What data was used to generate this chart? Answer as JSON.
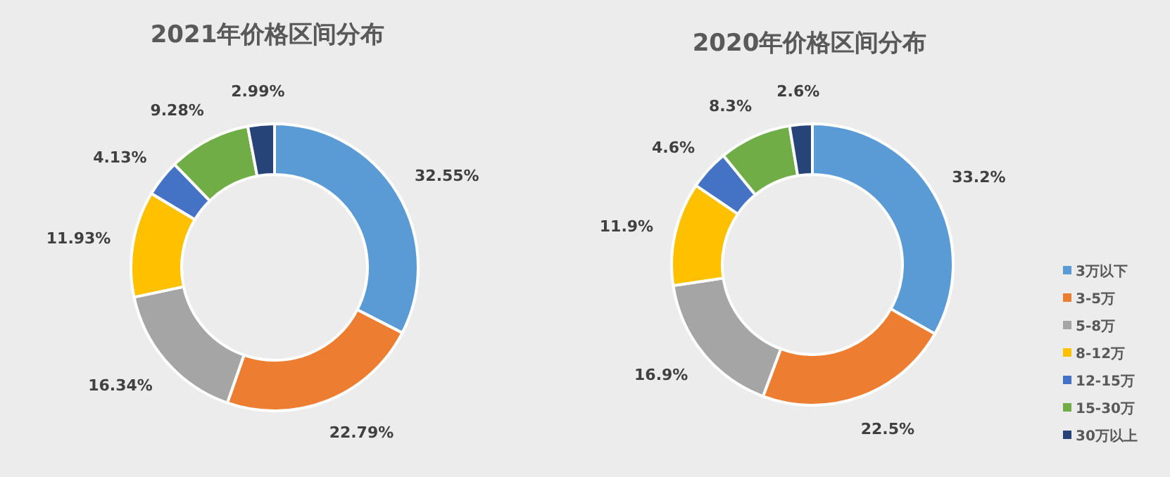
{
  "chart_data": [
    {
      "type": "donut",
      "title": "2021年价格区间分布",
      "values": [
        32.55,
        22.79,
        16.34,
        11.93,
        4.13,
        9.28,
        2.99
      ],
      "value_labels": [
        "32.55%",
        "22.79%",
        "16.34%",
        "11.93%",
        "4.13%",
        "9.28%",
        "2.99%"
      ],
      "colors": [
        "#5b9bd5",
        "#ed7d31",
        "#a5a5a5",
        "#ffc000",
        "#4472c4",
        "#70ad47",
        "#264478"
      ],
      "legend": false
    },
    {
      "type": "donut",
      "title": "2020年价格区间分布",
      "categories": [
        "3万以下",
        "3-5万",
        "5-8万",
        "8-12万",
        "12-15万",
        "15-30万",
        "30万以上"
      ],
      "values": [
        33.2,
        22.5,
        16.9,
        11.9,
        4.6,
        8.3,
        2.6
      ],
      "value_labels": [
        "33.2%",
        "22.5%",
        "16.9%",
        "11.9%",
        "4.6%",
        "8.3%",
        "2.6%"
      ],
      "colors": [
        "#5b9bd5",
        "#ed7d31",
        "#a5a5a5",
        "#ffc000",
        "#4472c4",
        "#70ad47",
        "#264478"
      ],
      "legend": "right"
    }
  ]
}
